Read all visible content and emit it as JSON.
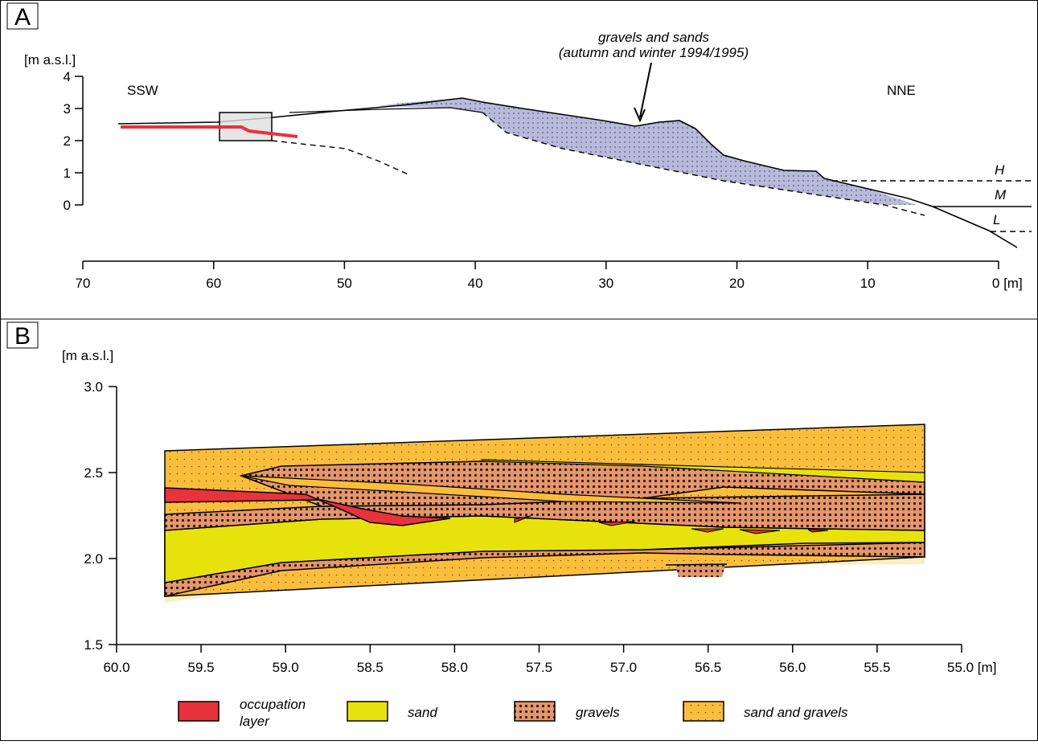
{
  "panel_a": {
    "label": "A",
    "y_axis_label": "[m a.s.l.]",
    "yticks": [
      "4",
      "3",
      "2",
      "1",
      "0"
    ],
    "xticks": [
      "70",
      "60",
      "50",
      "40",
      "30",
      "20",
      "10",
      "0 [m]"
    ],
    "annotation": [
      "gravels and sands",
      "(autumn and winter 1994/1995)"
    ],
    "left_label": "SSW",
    "right_label": "NNE",
    "levels": [
      "H",
      "M",
      "L"
    ]
  },
  "panel_b": {
    "label": "B",
    "y_axis_label": "[m a.s.l.]",
    "yticks": [
      "3.0",
      "2.5",
      "2.0",
      "1.5"
    ],
    "xticks": [
      "60.0",
      "59.5",
      "59.0",
      "58.5",
      "58.0",
      "57.5",
      "57.0",
      "56.5",
      "56.0",
      "55.5",
      "55.0 [m]"
    ]
  },
  "legend": [
    {
      "label": "occupation layer"
    },
    {
      "label": "sand"
    },
    {
      "label": "gravels"
    },
    {
      "label": "sand and gravels"
    }
  ]
}
